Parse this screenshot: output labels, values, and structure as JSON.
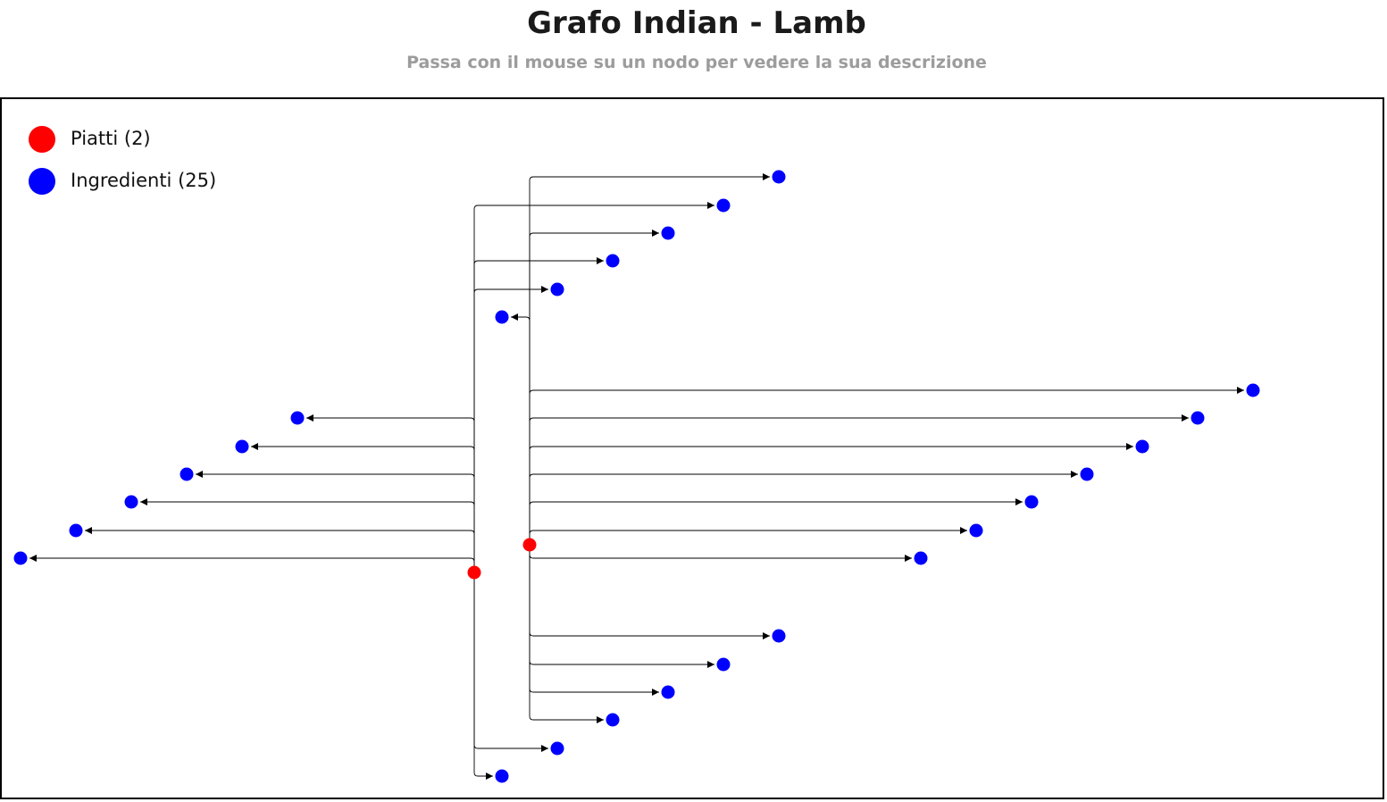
{
  "header": {
    "title": "Grafo Indian - Lamb",
    "subtitle": "Passa con il mouse su un nodo per vedere la sua descrizione"
  },
  "legend": {
    "dishes": {
      "label": "Piatti (2)",
      "color": "#ff0000"
    },
    "ingredients": {
      "label": "Ingredienti (25)",
      "color": "#0000ff"
    }
  },
  "colors": {
    "dish": "#ff0000",
    "ingredient": "#0000ff",
    "edge": "#000000"
  },
  "graph": {
    "dish_count": 2,
    "ingredient_count": 25
  }
}
